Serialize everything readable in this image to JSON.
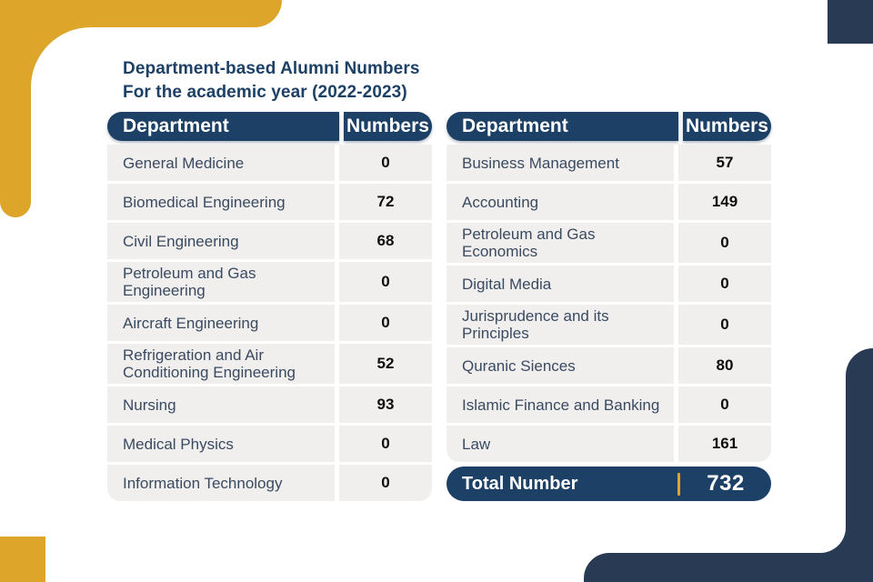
{
  "page": {
    "title_line1": "Department-based Alumni Numbers",
    "title_line2": "For the academic year (2022-2023)"
  },
  "columns": {
    "department": "Department",
    "numbers": "Numbers"
  },
  "tables": [
    {
      "id": "left",
      "rows": [
        {
          "department": "General Medicine",
          "numbers": "0"
        },
        {
          "department": "Biomedical Engineering",
          "numbers": "72"
        },
        {
          "department": "Civil Engineering",
          "numbers": "68"
        },
        {
          "department": "Petroleum and Gas Engineering",
          "numbers": "0"
        },
        {
          "department": "Aircraft Engineering",
          "numbers": "0"
        },
        {
          "department": "Refrigeration and Air Conditioning Engineering",
          "numbers": "52"
        },
        {
          "department": "Nursing",
          "numbers": "93"
        },
        {
          "department": "Medical Physics",
          "numbers": "0"
        },
        {
          "department": "Information Technology",
          "numbers": "0"
        }
      ]
    },
    {
      "id": "right",
      "rows": [
        {
          "department": "Business Management",
          "numbers": "57"
        },
        {
          "department": "Accounting",
          "numbers": "149"
        },
        {
          "department": "Petroleum and Gas Economics",
          "numbers": "0"
        },
        {
          "department": "Digital Media",
          "numbers": "0"
        },
        {
          "department": "Jurisprudence and its Principles",
          "numbers": "0"
        },
        {
          "department": "Quranic Siences",
          "numbers": "80"
        },
        {
          "department": "Islamic Finance and Banking",
          "numbers": "0"
        },
        {
          "department": "Law",
          "numbers": "161"
        }
      ]
    }
  ],
  "total": {
    "label": "Total Number",
    "value": "732"
  },
  "colors": {
    "header_navy": "#1d4066",
    "decor_navy": "#293b54",
    "gold": "#dda62b",
    "row_background": "#f0efee",
    "department_text": "#3a4a60",
    "number_text": "#0d0d0d"
  }
}
